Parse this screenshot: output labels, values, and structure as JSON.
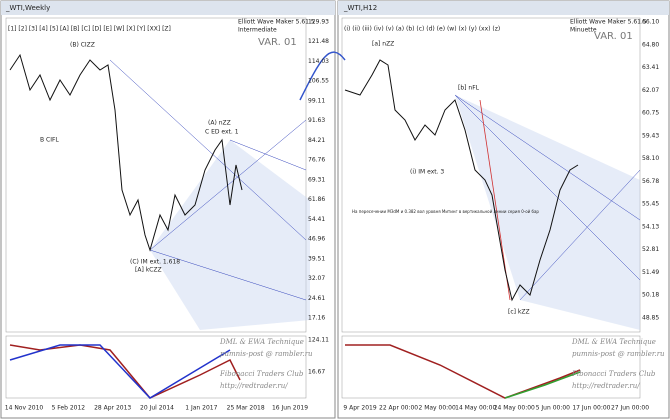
{
  "left": {
    "title": "_WTI,Weekly",
    "waves": "[1]  [2]  [3]  [4]  [5]  [A]  [B]  [C]  [D]  [E]  [W]  [X]  [Y]  [XX]  [Z]",
    "maker": "Elliott Wave Maker 5.61.5",
    "degree": "Intermediate",
    "variant": "VAR. 01",
    "price_labels": [
      "129.93",
      "121.48",
      "114.03",
      "106.55",
      "99.11",
      "91.63",
      "84.21",
      "76.76",
      "69.31",
      "61.86",
      "54.41",
      "46.96",
      "39.51",
      "32.07",
      "24.61",
      "17.16"
    ],
    "indicator_labels": [
      "124.11",
      "16.67"
    ],
    "dates": [
      "14 Nov 2010",
      "5 Feb 2012",
      "28 Apr 2013",
      "20 Jul 2014",
      "1 Jan 2017",
      "25 Mar 2018",
      "16 Jun 2019"
    ],
    "annotations": [
      "(B) CIZZ",
      "B CIFL",
      "(A) nZZ",
      "C ED ext. 1",
      "(C) IM ext. 1.618",
      "[A] kCZZ"
    ],
    "footer": [
      "DML & EWA Technique",
      "pumnis-post @ rambler.ru",
      "Fibonacci Traders Club",
      "http://redtrader.ru/"
    ]
  },
  "right": {
    "title": "_WTI,H12",
    "waves": "(i)  (ii)  (iii)  (iv)  (v)  (a)  (b)  (c)  (d)  (e)  (w)  (x)  (y)  (xx)  (z)",
    "maker": "Elliott Wave Maker 5.61.5",
    "degree": "Minuette",
    "variant": "VAR. 01",
    "price_labels": [
      "66.10",
      "64.80",
      "63.41",
      "62.07",
      "60.75",
      "59.43",
      "58.10",
      "56.78",
      "55.45",
      "54.13",
      "52.81",
      "51.49",
      "50.18",
      "48.85"
    ],
    "dates": [
      "9 Apr 2019",
      "22 Apr 00:00",
      "2 May 00:00",
      "14 May 00:00",
      "24 May 00:00",
      "5 Jun 00:00",
      "17 Jun 00:00",
      "27 Jun 00:00"
    ],
    "annotations": [
      "[a] nZZ",
      "(i) IM ext. 3",
      "[b] nFL",
      "[c] kZZ",
      "На пересечении MЗdM и 0.382 вол уровня Митинг в вертикальной линии серия 0-ой бар"
    ],
    "footer": [
      "DML & EWA Technique",
      "pumnis-post @ rambler.ru",
      "Fibonacci Traders Club",
      "http://redtrader.ru/"
    ]
  }
}
